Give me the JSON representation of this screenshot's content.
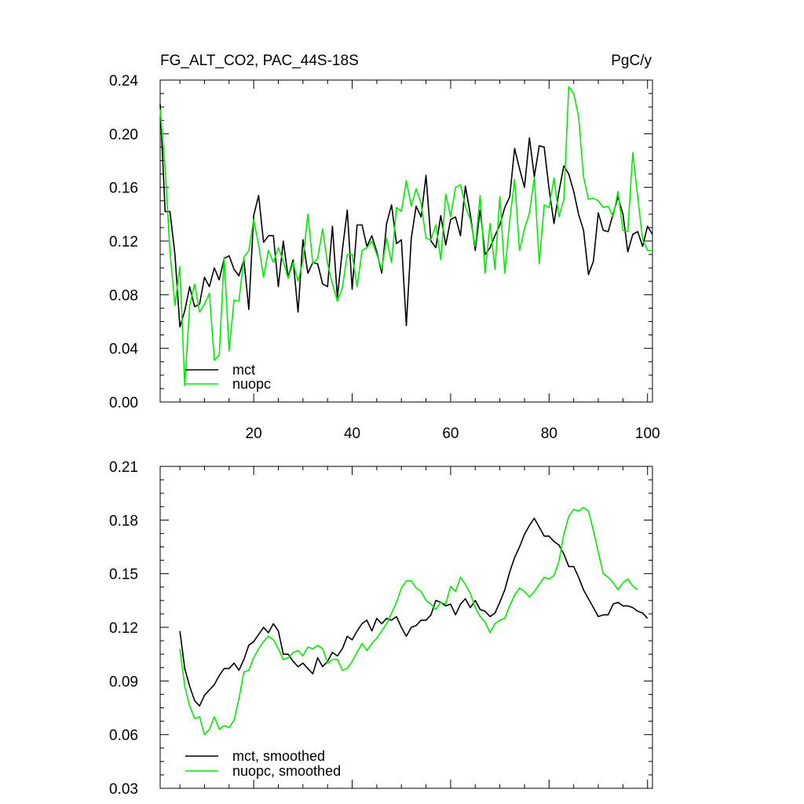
{
  "colors": {
    "mct": "#000000",
    "nuopc": "#00ee00"
  },
  "chart_data": [
    {
      "type": "line",
      "title": "FG_ALT_CO2, PAC_44S-18S",
      "units": "PgC/y",
      "xlim": [
        1,
        101
      ],
      "ylim": [
        0.0,
        0.24
      ],
      "x_ticks": [
        20,
        40,
        60,
        80,
        100
      ],
      "x_tick_labels": [
        "20",
        "40",
        "60",
        "80",
        "100"
      ],
      "y_ticks": [
        0.0,
        0.04,
        0.08,
        0.12,
        0.16,
        0.2,
        0.24
      ],
      "y_tick_labels": [
        "0.00",
        "0.04",
        "0.08",
        "0.12",
        "0.16",
        "0.20",
        "0.24"
      ],
      "legend_position": "bottom-left",
      "series": [
        {
          "name": "mct",
          "color": "#000000",
          "x_start": 1,
          "values": [
            0.222,
            0.142,
            0.142,
            0.11,
            0.056,
            0.068,
            0.086,
            0.071,
            0.073,
            0.093,
            0.086,
            0.1,
            0.091,
            0.107,
            0.109,
            0.099,
            0.094,
            0.106,
            0.069,
            0.139,
            0.154,
            0.119,
            0.124,
            0.124,
            0.086,
            0.12,
            0.093,
            0.106,
            0.067,
            0.121,
            0.096,
            0.104,
            0.103,
            0.088,
            0.086,
            0.131,
            0.078,
            0.113,
            0.143,
            0.084,
            0.132,
            0.132,
            0.116,
            0.124,
            0.112,
            0.096,
            0.133,
            0.147,
            0.118,
            0.121,
            0.057,
            0.122,
            0.146,
            0.138,
            0.169,
            0.12,
            0.115,
            0.139,
            0.117,
            0.136,
            0.138,
            0.124,
            0.161,
            0.14,
            0.113,
            0.143,
            0.11,
            0.115,
            0.124,
            0.132,
            0.145,
            0.153,
            0.189,
            0.174,
            0.16,
            0.197,
            0.168,
            0.191,
            0.19,
            0.159,
            0.133,
            0.157,
            0.176,
            0.17,
            0.157,
            0.14,
            0.128,
            0.095,
            0.105,
            0.141,
            0.128,
            0.127,
            0.14,
            0.153,
            0.14,
            0.112,
            0.125,
            0.127,
            0.116,
            0.131,
            0.125
          ]
        },
        {
          "name": "nuopc",
          "color": "#00ee00",
          "x_start": 1,
          "values": [
            0.218,
            0.175,
            0.112,
            0.072,
            0.101,
            0.012,
            0.072,
            0.088,
            0.067,
            0.073,
            0.081,
            0.031,
            0.035,
            0.108,
            0.038,
            0.076,
            0.075,
            0.108,
            0.113,
            0.136,
            0.117,
            0.093,
            0.113,
            0.104,
            0.115,
            0.105,
            0.092,
            0.104,
            0.09,
            0.105,
            0.14,
            0.103,
            0.107,
            0.129,
            0.103,
            0.088,
            0.075,
            0.085,
            0.11,
            0.11,
            0.086,
            0.113,
            0.115,
            0.12,
            0.11,
            0.099,
            0.122,
            0.104,
            0.145,
            0.142,
            0.165,
            0.146,
            0.159,
            0.148,
            0.122,
            0.121,
            0.132,
            0.106,
            0.155,
            0.138,
            0.16,
            0.162,
            0.146,
            0.136,
            0.116,
            0.154,
            0.096,
            0.133,
            0.099,
            0.153,
            0.096,
            0.135,
            0.166,
            0.113,
            0.129,
            0.141,
            0.167,
            0.103,
            0.147,
            0.145,
            0.167,
            0.138,
            0.151,
            0.235,
            0.23,
            0.213,
            0.168,
            0.151,
            0.152,
            0.15,
            0.145,
            0.146,
            0.138,
            0.157,
            0.128,
            0.127,
            0.186,
            0.153,
            0.121,
            0.113,
            0.113
          ]
        }
      ],
      "legend": [
        "mct",
        "nuopc"
      ]
    },
    {
      "type": "line",
      "xlim": [
        1,
        101
      ],
      "ylim": [
        0.03,
        0.21
      ],
      "x_ticks": [
        20,
        40,
        60,
        80,
        100
      ],
      "y_ticks": [
        0.03,
        0.06,
        0.09,
        0.12,
        0.15,
        0.18,
        0.21
      ],
      "y_tick_labels": [
        "0.03",
        "0.06",
        "0.09",
        "0.12",
        "0.15",
        "0.18",
        "0.21"
      ],
      "legend_position": "bottom-left",
      "series": [
        {
          "name": "mct, smoothed",
          "color": "#000000",
          "x_start": 5,
          "values": [
            0.118,
            0.097,
            0.087,
            0.079,
            0.076,
            0.082,
            0.085,
            0.088,
            0.093,
            0.097,
            0.097,
            0.1,
            0.096,
            0.102,
            0.11,
            0.112,
            0.116,
            0.12,
            0.117,
            0.122,
            0.118,
            0.105,
            0.105,
            0.101,
            0.098,
            0.1,
            0.097,
            0.094,
            0.103,
            0.098,
            0.101,
            0.106,
            0.104,
            0.108,
            0.115,
            0.113,
            0.118,
            0.122,
            0.124,
            0.118,
            0.125,
            0.122,
            0.125,
            0.124,
            0.126,
            0.12,
            0.115,
            0.12,
            0.121,
            0.124,
            0.124,
            0.127,
            0.135,
            0.134,
            0.132,
            0.133,
            0.127,
            0.133,
            0.136,
            0.131,
            0.135,
            0.13,
            0.129,
            0.126,
            0.128,
            0.134,
            0.141,
            0.151,
            0.159,
            0.165,
            0.172,
            0.177,
            0.181,
            0.176,
            0.171,
            0.171,
            0.168,
            0.166,
            0.161,
            0.154,
            0.154,
            0.148,
            0.141,
            0.136,
            0.131,
            0.126,
            0.127,
            0.127,
            0.133,
            0.134,
            0.132,
            0.132,
            0.131,
            0.129,
            0.128,
            0.125
          ]
        },
        {
          "name": "nuopc, smoothed",
          "color": "#00ee00",
          "x_start": 5,
          "values": [
            0.108,
            0.087,
            0.076,
            0.069,
            0.07,
            0.06,
            0.063,
            0.07,
            0.063,
            0.065,
            0.064,
            0.068,
            0.08,
            0.095,
            0.096,
            0.103,
            0.108,
            0.112,
            0.115,
            0.113,
            0.108,
            0.102,
            0.103,
            0.106,
            0.107,
            0.104,
            0.109,
            0.108,
            0.11,
            0.108,
            0.1,
            0.102,
            0.102,
            0.096,
            0.097,
            0.101,
            0.106,
            0.111,
            0.107,
            0.111,
            0.114,
            0.118,
            0.122,
            0.128,
            0.134,
            0.142,
            0.146,
            0.146,
            0.142,
            0.14,
            0.135,
            0.133,
            0.13,
            0.134,
            0.133,
            0.143,
            0.14,
            0.148,
            0.144,
            0.139,
            0.131,
            0.126,
            0.123,
            0.117,
            0.122,
            0.124,
            0.125,
            0.132,
            0.138,
            0.142,
            0.14,
            0.137,
            0.14,
            0.144,
            0.148,
            0.147,
            0.149,
            0.157,
            0.172,
            0.182,
            0.186,
            0.185,
            0.187,
            0.185,
            0.174,
            0.162,
            0.15,
            0.148,
            0.145,
            0.141,
            0.145,
            0.147,
            0.143,
            0.141
          ]
        }
      ],
      "legend": [
        "mct, smoothed",
        "nuopc, smoothed"
      ]
    }
  ]
}
